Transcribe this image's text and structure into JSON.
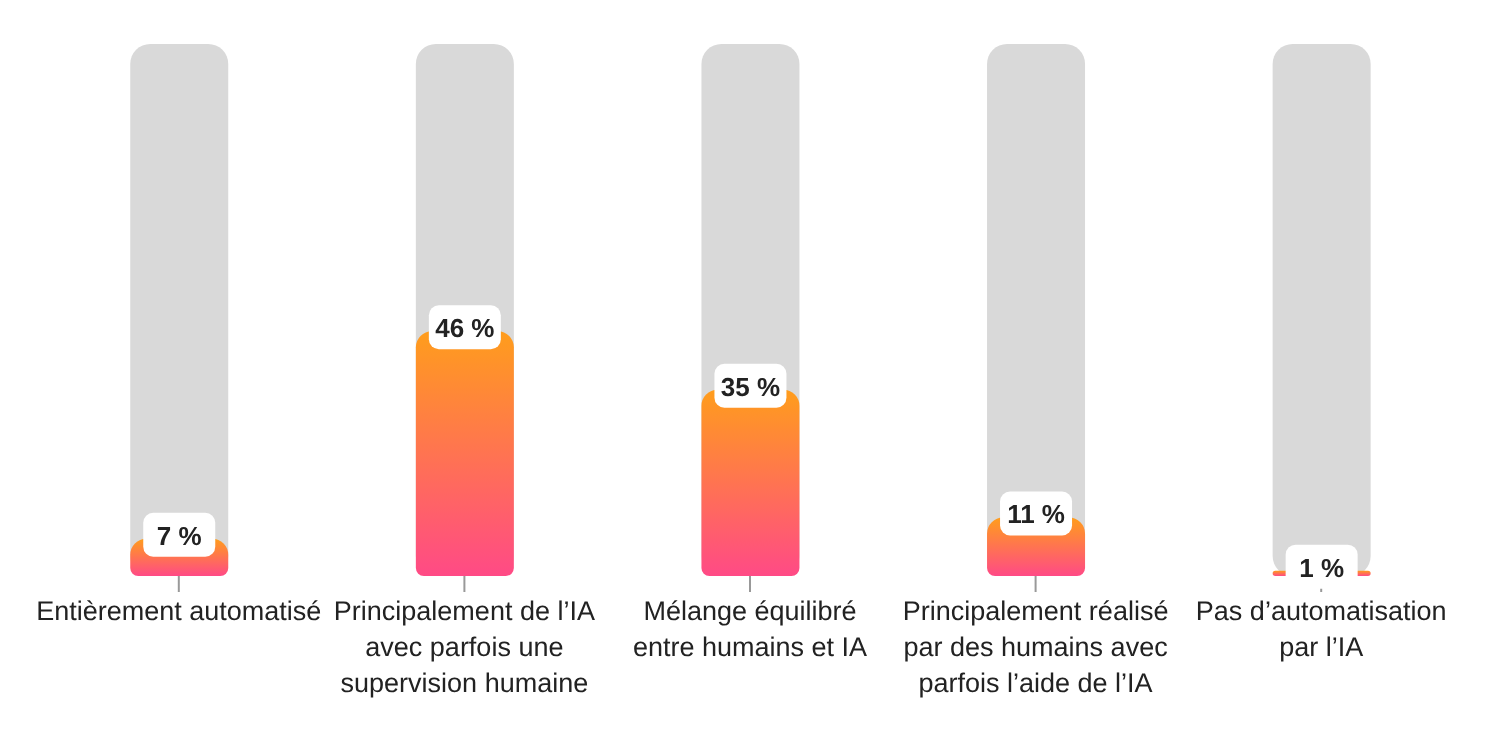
{
  "chart_data": {
    "type": "bar",
    "categories": [
      "Entièrement automatisé",
      "Principalement de l’IA avec parfois une supervision humaine",
      "Mélange équilibré entre humains et IA",
      "Principalement réalisé par des humains avec parfois l’aide de l’IA",
      "Pas d’automatisation par l’IA"
    ],
    "values": [
      7,
      46,
      35,
      11,
      1
    ],
    "value_labels": [
      "7 %",
      "46 %",
      "35 %",
      "11 %",
      "1 %"
    ],
    "color": "#ff9d1c",
    "ylim": [
      0,
      100
    ],
    "tick_labels": "x"
  }
}
